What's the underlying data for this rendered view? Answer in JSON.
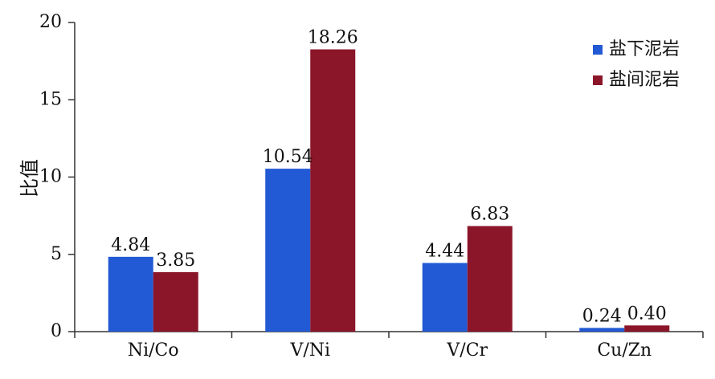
{
  "chart_data": {
    "type": "bar",
    "title": "",
    "xlabel": "",
    "ylabel": "比值",
    "categories": [
      "Ni/Co",
      "V/Ni",
      "V/Cr",
      "Cu/Zn"
    ],
    "series": [
      {
        "name": "盐下泥岩",
        "values": [
          4.84,
          10.54,
          4.44,
          0.24
        ],
        "labels": [
          "4.84",
          "10.54",
          "4.44",
          "0.24"
        ],
        "color": "#2259d4"
      },
      {
        "name": "盐间泥岩",
        "values": [
          3.85,
          18.26,
          6.83,
          0.4
        ],
        "labels": [
          "3.85",
          "18.26",
          "6.83",
          "0.40"
        ],
        "color": "#8b1529"
      }
    ],
    "ylim": [
      0,
      20
    ],
    "yticks": [
      0,
      5,
      10,
      15,
      20
    ],
    "grid": false,
    "legend_position": "top-right"
  }
}
